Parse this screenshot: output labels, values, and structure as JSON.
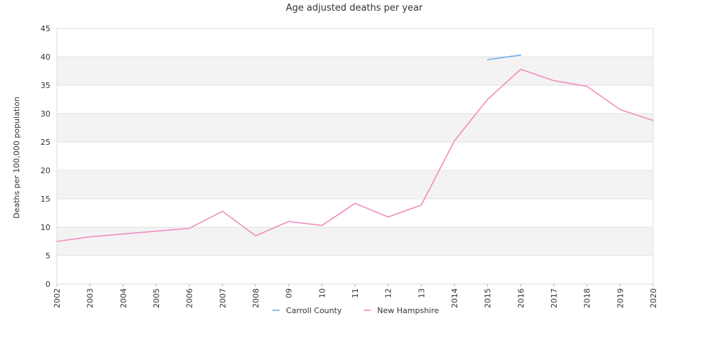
{
  "chart_data": {
    "type": "line",
    "title": "Age adjusted deaths per year",
    "xlabel": "",
    "ylabel": "Deaths per 100,000 population",
    "ylim": [
      0,
      45
    ],
    "yticks": [
      0,
      5,
      10,
      15,
      20,
      25,
      30,
      35,
      40,
      45
    ],
    "categories": [
      "2002",
      "2003",
      "2004",
      "2005",
      "2006",
      "2007",
      "2008",
      "09",
      "10",
      "11",
      "12",
      "13",
      "2014",
      "2015",
      "2016",
      "2017",
      "2018",
      "2019",
      "2020"
    ],
    "grid": "horizontal alternating bands",
    "legend": "bottom-center",
    "series": [
      {
        "name": "Carroll County",
        "color": "#6aaee8",
        "values": [
          null,
          null,
          null,
          null,
          null,
          null,
          null,
          null,
          null,
          null,
          null,
          null,
          null,
          39.5,
          40.3,
          null,
          null,
          null,
          null
        ]
      },
      {
        "name": "New Hampshire",
        "color": "#f08cbf",
        "values": [
          7.5,
          8.3,
          8.8,
          9.3,
          9.8,
          12.8,
          8.5,
          11.0,
          10.3,
          14.2,
          11.8,
          13.9,
          25.2,
          32.5,
          37.8,
          35.8,
          34.8,
          30.7,
          28.8
        ]
      }
    ]
  }
}
